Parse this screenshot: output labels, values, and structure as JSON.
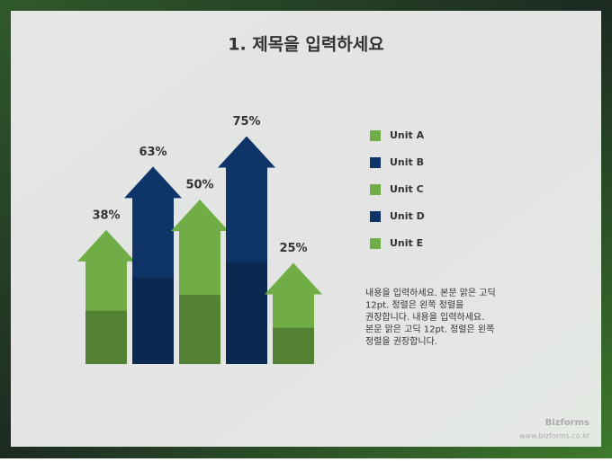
{
  "chart_data": {
    "type": "arrow-bar",
    "title": "1. 제목을 입력하세요",
    "categories": [
      "Unit A",
      "Unit B",
      "Unit C",
      "Unit D",
      "Unit E"
    ],
    "values": [
      38,
      63,
      50,
      75,
      25
    ],
    "value_labels": [
      "38%",
      "63%",
      "50%",
      "75%",
      "25%"
    ],
    "colors": [
      "#70ad47",
      "#0f3468",
      "#70ad47",
      "#0f3468",
      "#70ad47"
    ],
    "shade_colors": [
      "#548235",
      "#0a2850",
      "#548235",
      "#0a2850",
      "#548235"
    ],
    "legend": "right"
  },
  "body_text": [
    "내용을 입력하세요. 본문 맑은 고딕",
    "12pt. 정렬은 왼쪽 정렬을",
    "권장합니다. 내용을 입력하세요.",
    "본문 맑은 고딕 12pt. 정렬은 왼쪽",
    "정렬을 권장합니다."
  ],
  "footer": {
    "brand": "Bizforms",
    "url": "www.bizforms.co.kr"
  }
}
